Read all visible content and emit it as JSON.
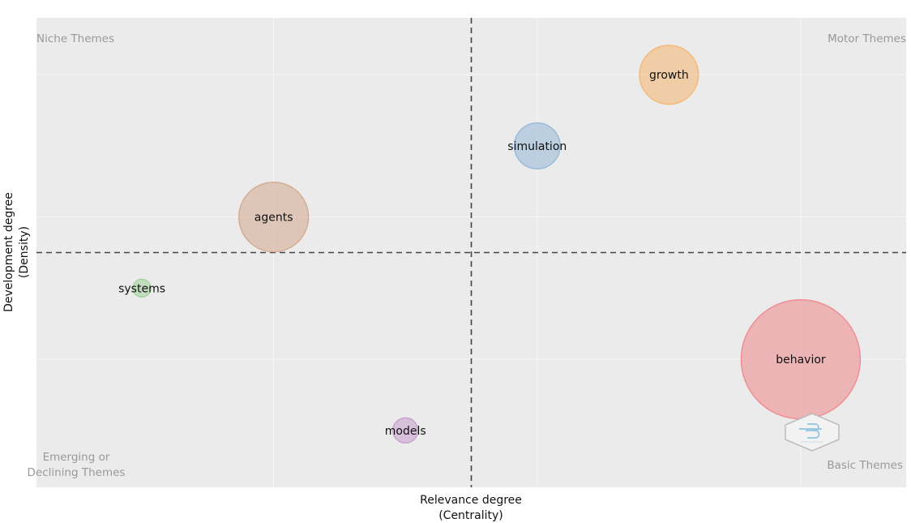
{
  "chart_data": {
    "type": "scatter",
    "subtype": "bubble",
    "xlabel": [
      "Relevance degree",
      "(Centrality)"
    ],
    "ylabel": [
      "Development degree",
      "(Density)"
    ],
    "xlim": [
      0,
      6.6
    ],
    "ylim": [
      0,
      3.3
    ],
    "x_threshold": 3.3,
    "y_threshold": 1.65,
    "grid": true,
    "tick_labels_visible": false,
    "quadrant_labels": {
      "top_left": [
        "Niche Themes"
      ],
      "top_right": [
        "Motor Themes"
      ],
      "bottom_left": [
        "Emerging or",
        "Declining Themes"
      ],
      "bottom_right": [
        "Basic Themes"
      ]
    },
    "points": [
      {
        "label": "growth",
        "x": 4.8,
        "y": 2.9,
        "size": 3.3,
        "color": "#f5b97a"
      },
      {
        "label": "simulation",
        "x": 3.8,
        "y": 2.4,
        "size": 2.0,
        "color": "#9dbcd9"
      },
      {
        "label": "agents",
        "x": 1.8,
        "y": 1.9,
        "size": 4.6,
        "color": "#d4ad96"
      },
      {
        "label": "systems",
        "x": 0.8,
        "y": 1.4,
        "size": 0.3,
        "color": "#a7d3a0"
      },
      {
        "label": "behavior",
        "x": 5.8,
        "y": 0.9,
        "size": 13.5,
        "color": "#ef8f93"
      },
      {
        "label": "models",
        "x": 2.8,
        "y": 0.4,
        "size": 0.6,
        "color": "#c9a3cf"
      }
    ],
    "colors": {
      "panel_background": "#ebebeb",
      "gridline": "#f7f7f7",
      "threshold_line": "#444444",
      "quadrant_text": "#999999",
      "logo": "#bcbcbc",
      "logo_accent": "#9cc8e0"
    },
    "logo": {
      "icon": "hexagon-logo-icon",
      "position": "bottom-right"
    }
  }
}
